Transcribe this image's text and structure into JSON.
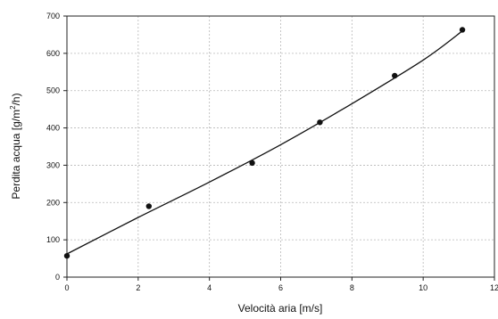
{
  "chart_data": {
    "type": "scatter",
    "xlabel": "Velocità aria [m/s]",
    "ylabel_parts": {
      "before": "Perdita acqua [g/m",
      "sup": "2",
      "after": "/h)"
    },
    "xlim": [
      0,
      12
    ],
    "ylim": [
      0,
      700
    ],
    "xticks": [
      "0",
      "2",
      "4",
      "6",
      "8",
      "10",
      "12"
    ],
    "yticks": [
      "0",
      "100",
      "200",
      "300",
      "400",
      "500",
      "600",
      "700"
    ],
    "grid": true,
    "points": [
      {
        "x": 0,
        "y": 57
      },
      {
        "x": 2.3,
        "y": 190
      },
      {
        "x": 5.2,
        "y": 306
      },
      {
        "x": 7.1,
        "y": 415
      },
      {
        "x": 9.2,
        "y": 540
      },
      {
        "x": 11.1,
        "y": 663
      }
    ],
    "fit_curve": [
      {
        "x": 0,
        "y": 62
      },
      {
        "x": 2,
        "y": 160
      },
      {
        "x": 4,
        "y": 255
      },
      {
        "x": 6,
        "y": 355
      },
      {
        "x": 8,
        "y": 465
      },
      {
        "x": 10,
        "y": 582
      },
      {
        "x": 11.1,
        "y": 660
      }
    ]
  }
}
